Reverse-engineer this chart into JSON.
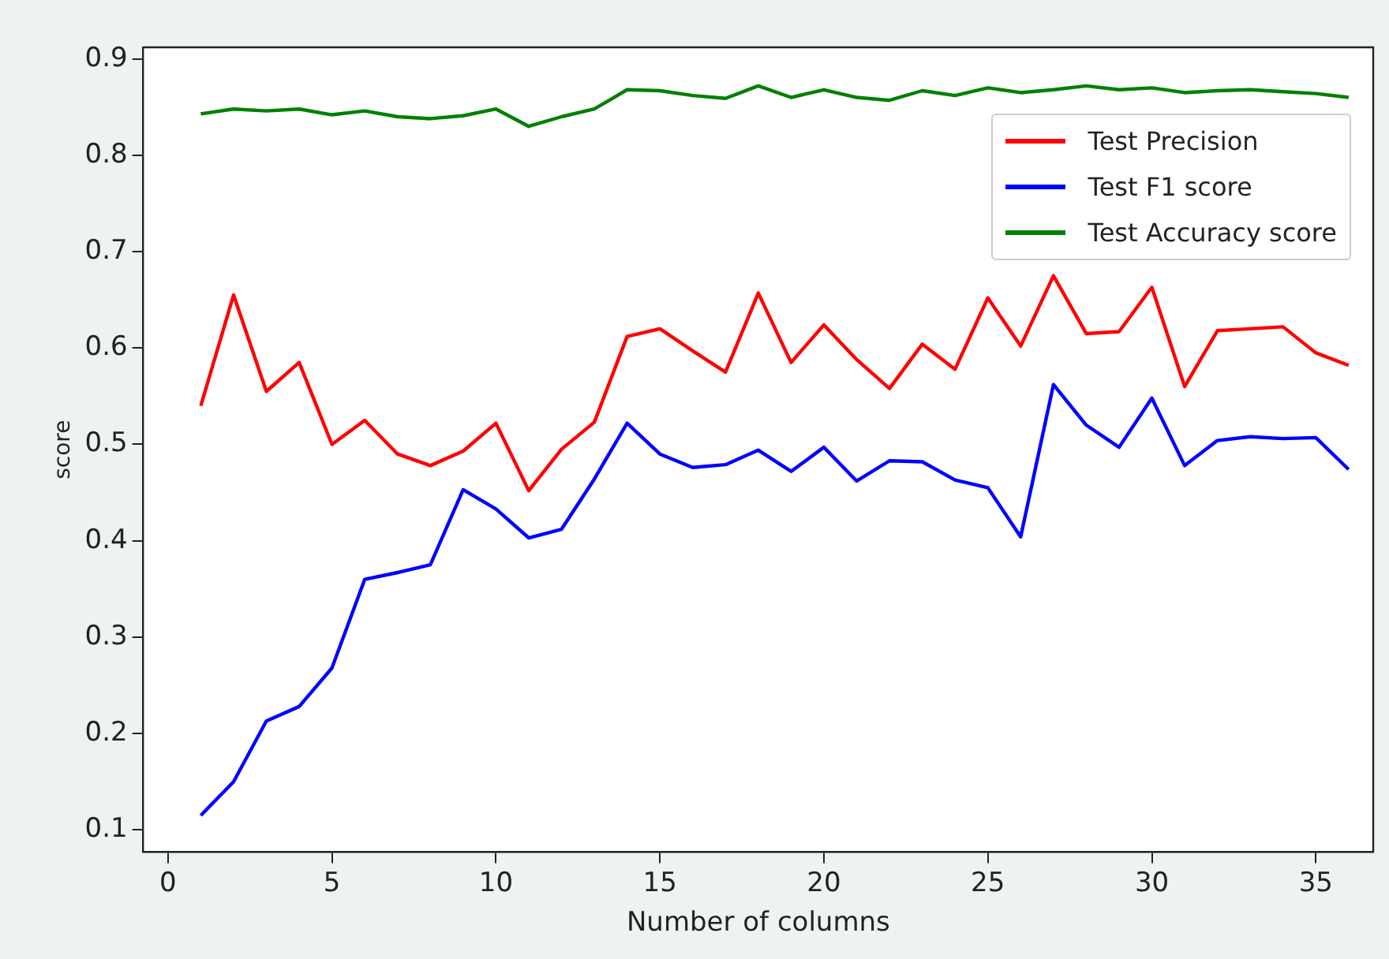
{
  "chart_data": {
    "type": "line",
    "xlabel": "Number of columns",
    "ylabel": "score",
    "x": [
      1,
      2,
      3,
      4,
      5,
      6,
      7,
      8,
      9,
      10,
      11,
      12,
      13,
      14,
      15,
      16,
      17,
      18,
      19,
      20,
      21,
      22,
      23,
      24,
      25,
      26,
      27,
      28,
      29,
      30,
      31,
      32,
      33,
      34,
      35,
      36
    ],
    "series": [
      {
        "name": "Test Precision",
        "color": "#ff0000",
        "values": [
          0.54,
          0.655,
          0.555,
          0.585,
          0.5,
          0.525,
          0.49,
          0.478,
          0.493,
          0.522,
          0.452,
          0.495,
          0.523,
          0.612,
          0.62,
          0.597,
          0.575,
          0.657,
          0.585,
          0.624,
          0.588,
          0.558,
          0.604,
          0.578,
          0.652,
          0.602,
          0.675,
          0.615,
          0.617,
          0.663,
          0.56,
          0.618,
          0.62,
          0.622,
          0.595,
          0.582
        ]
      },
      {
        "name": "Test F1 score",
        "color": "#0000ff",
        "values": [
          0.115,
          0.15,
          0.213,
          0.228,
          0.268,
          0.36,
          0.367,
          0.375,
          0.453,
          0.433,
          0.403,
          0.412,
          0.464,
          0.522,
          0.49,
          0.476,
          0.479,
          0.494,
          0.472,
          0.497,
          0.462,
          0.483,
          0.482,
          0.463,
          0.455,
          0.404,
          0.562,
          0.52,
          0.497,
          0.548,
          0.478,
          0.504,
          0.508,
          0.506,
          0.507,
          0.474
        ]
      },
      {
        "name": "Test Accuracy score",
        "color": "#008000",
        "values": [
          0.843,
          0.848,
          0.846,
          0.848,
          0.842,
          0.846,
          0.84,
          0.838,
          0.841,
          0.848,
          0.83,
          0.84,
          0.848,
          0.868,
          0.867,
          0.862,
          0.859,
          0.872,
          0.86,
          0.868,
          0.86,
          0.857,
          0.867,
          0.862,
          0.87,
          0.865,
          0.868,
          0.872,
          0.868,
          0.87,
          0.865,
          0.867,
          0.868,
          0.866,
          0.864,
          0.86
        ]
      }
    ],
    "xlim": [
      -0.75,
      36.75
    ],
    "ylim": [
      0.077,
      0.912
    ],
    "xticks": [
      0,
      5,
      10,
      15,
      20,
      25,
      30,
      35
    ],
    "yticks": [
      0.1,
      0.2,
      0.3,
      0.4,
      0.5,
      0.6,
      0.7,
      0.8,
      0.9
    ],
    "grid": false,
    "legend": "top right",
    "marker": "none",
    "line_style": "solid"
  }
}
